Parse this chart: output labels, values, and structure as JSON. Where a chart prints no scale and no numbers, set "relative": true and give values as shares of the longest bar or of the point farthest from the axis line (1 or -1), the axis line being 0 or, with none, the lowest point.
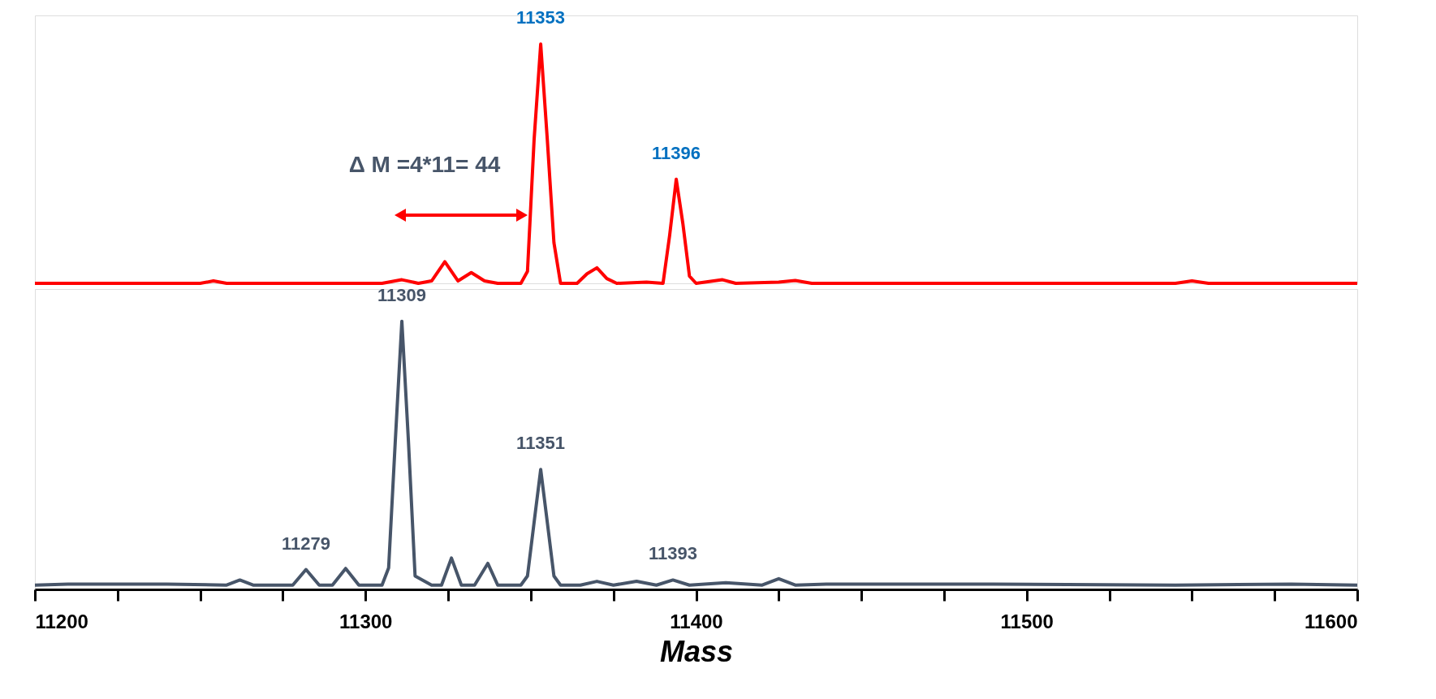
{
  "chart_data": [
    {
      "type": "line",
      "relative": true,
      "tick_labels": false,
      "grid": false,
      "xlim": [
        11200,
        11600
      ],
      "series": [
        {
          "color": "#ff0000",
          "x": [
            11200,
            11250,
            11254,
            11258,
            11305,
            11311,
            11316,
            11320,
            11324,
            11328,
            11332,
            11336,
            11340,
            11347,
            11349,
            11351,
            11353,
            11355,
            11357,
            11359,
            11364,
            11367,
            11370,
            11373,
            11376,
            11385,
            11390,
            11392,
            11394,
            11396,
            11398,
            11400,
            11408,
            11412,
            11425,
            11430,
            11435,
            11545,
            11550,
            11555,
            11600
          ],
          "values": [
            0,
            0,
            0.01,
            0,
            0,
            0.015,
            0,
            0.01,
            0.09,
            0.01,
            0.045,
            0.01,
            0,
            0,
            0.05,
            0.6,
            1.0,
            0.6,
            0.17,
            0,
            0,
            0.04,
            0.065,
            0.02,
            0,
            0.005,
            0,
            0.2,
            0.435,
            0.25,
            0.03,
            0,
            0.015,
            0,
            0.005,
            0.012,
            0,
            0,
            0.01,
            0,
            0
          ]
        }
      ],
      "annotations": [
        {
          "text": "11353",
          "x": 11353,
          "y": 1.0
        },
        {
          "text": "11396",
          "x": 11394,
          "y": 0.435
        },
        "Δ M =4*11= 44"
      ]
    },
    {
      "type": "line",
      "relative": true,
      "grid": false,
      "xlim": [
        11200,
        11600
      ],
      "xlabel": "Mass",
      "xticks": [
        11200,
        {
          "value": 11225,
          "label": null
        },
        {
          "value": 11250,
          "label": null
        },
        {
          "value": 11275,
          "label": null
        },
        11300,
        {
          "value": 11325,
          "label": null
        },
        {
          "value": 11350,
          "label": null
        },
        {
          "value": 11375,
          "label": null
        },
        11400,
        {
          "value": 11425,
          "label": null
        },
        {
          "value": 11450,
          "label": null
        },
        {
          "value": 11475,
          "label": null
        },
        11500,
        {
          "value": 11525,
          "label": null
        },
        {
          "value": 11550,
          "label": null
        },
        {
          "value": 11575,
          "label": null
        },
        11600
      ],
      "series": [
        {
          "color": "#475569",
          "x": [
            11200,
            11210,
            11240,
            11258,
            11262,
            11266,
            11278,
            11282,
            11286,
            11290,
            11294,
            11298,
            11305,
            11307,
            11309,
            11311,
            11313,
            11315,
            11320,
            11323,
            11326,
            11329,
            11333,
            11337,
            11340,
            11347,
            11349,
            11351,
            11353,
            11355,
            11357,
            11359,
            11365,
            11370,
            11375,
            11382,
            11388,
            11393,
            11398,
            11409,
            11420,
            11425,
            11430,
            11440,
            11490,
            11545,
            11580,
            11600
          ],
          "values": [
            0.016,
            0.02,
            0.02,
            0.016,
            0.035,
            0.016,
            0.016,
            0.074,
            0.016,
            0.016,
            0.078,
            0.016,
            0.016,
            0.08,
            0.55,
            1.0,
            0.55,
            0.05,
            0.016,
            0.016,
            0.117,
            0.016,
            0.016,
            0.097,
            0.016,
            0.016,
            0.05,
            0.25,
            0.447,
            0.25,
            0.05,
            0.016,
            0.016,
            0.03,
            0.016,
            0.03,
            0.016,
            0.035,
            0.016,
            0.025,
            0.016,
            0.04,
            0.016,
            0.02,
            0.02,
            0.016,
            0.02,
            0.016
          ]
        }
      ],
      "annotations": [
        {
          "text": "11309",
          "x": 11311,
          "y": 1.0
        },
        {
          "text": "11351",
          "x": 11353,
          "y": 0.447
        },
        {
          "text": "11279",
          "x": 11282,
          "y": 0.074
        },
        {
          "text": "11393",
          "x": 11393,
          "y": 0.035
        }
      ]
    }
  ]
}
